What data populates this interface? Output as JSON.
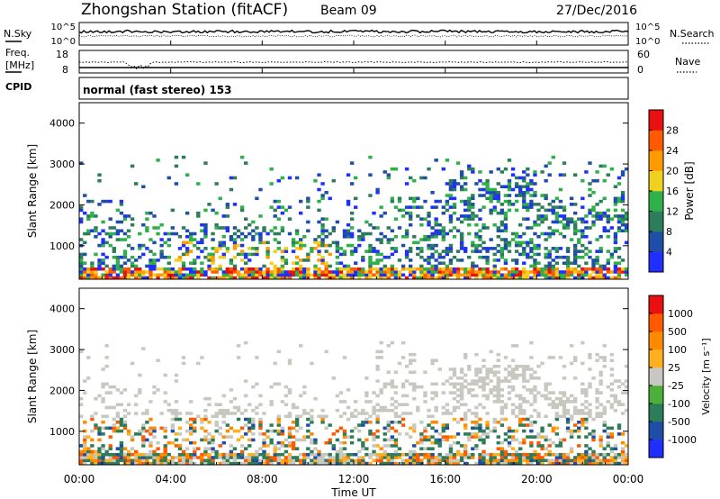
{
  "header": {
    "station": "Zhongshan Station (fitACF)",
    "beam": "Beam 09",
    "date": "27/Dec/2016"
  },
  "top_panels": {
    "nsky": {
      "label": "N.Sky",
      "ticks": [
        "10^5",
        "10^0"
      ]
    },
    "nsearch": {
      "label": "N.Search",
      "ticks": [
        "10^5",
        "10^0"
      ]
    },
    "freq": {
      "label_line1": "Freq.",
      "label_line2": "[MHz]",
      "ticks": [
        "18",
        "8"
      ]
    },
    "nave": {
      "label": "Nave",
      "ticks": [
        "60",
        "0"
      ]
    },
    "cpid": {
      "label": "CPID",
      "value": "normal (fast stereo) 153"
    }
  },
  "chart_data": [
    {
      "type": "heatmap",
      "name": "power",
      "ylabel": "Slant Range [km]",
      "ylim": [
        180,
        4500
      ],
      "yticks": [
        1000,
        2000,
        3000,
        4000
      ],
      "xlim": [
        "00:00",
        "24:00"
      ],
      "colorbar": {
        "label": "Power [dB]",
        "ticks": [
          "4",
          "8",
          "12",
          "16",
          "20",
          "24",
          "28"
        ],
        "colors": [
          "#1f2fff",
          "#1f4ea8",
          "#2e7d5a",
          "#2fb04a",
          "#f0d020",
          "#ff9a00",
          "#ff5a00",
          "#e81010"
        ]
      }
    },
    {
      "type": "heatmap",
      "name": "velocity",
      "ylabel": "Slant Range [km]",
      "ylim": [
        180,
        4500
      ],
      "yticks": [
        1000,
        2000,
        3000,
        4000
      ],
      "xlim": [
        "00:00",
        "24:00"
      ],
      "colorbar": {
        "label": "Velocity [m s⁻¹]",
        "ticks": [
          "1000",
          "500",
          "100",
          "25",
          "-25",
          "-100",
          "-500",
          "-1000"
        ],
        "colors": [
          "#1f2fff",
          "#1f4ea8",
          "#2e7d5a",
          "#4caf3a",
          "#c8c8c0",
          "#ffb020",
          "#ff8a00",
          "#ff5a00",
          "#e81010"
        ]
      }
    }
  ],
  "xaxis": {
    "ticks": [
      "00:00",
      "04:00",
      "08:00",
      "12:00",
      "16:00",
      "20:00",
      "00:00"
    ],
    "label": "Time UT"
  }
}
